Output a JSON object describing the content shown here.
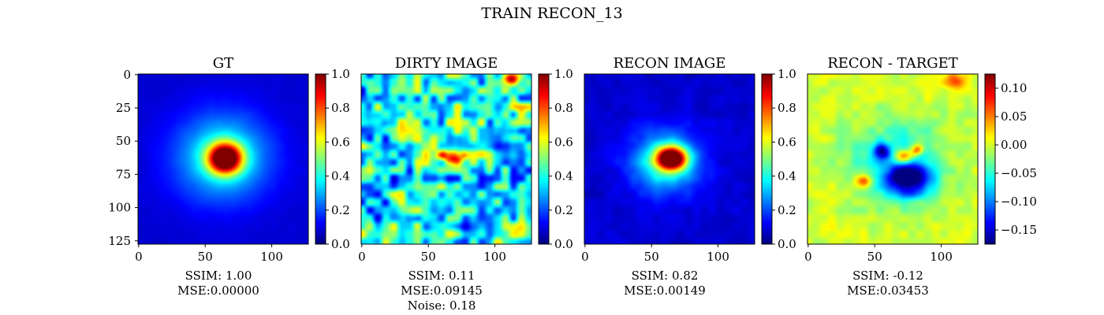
{
  "figure": {
    "suptitle": "TRAIN RECON_13"
  },
  "chart_data": [
    {
      "type": "heatmap",
      "title": "GT",
      "image_size": [
        128,
        128
      ],
      "colormap": "jet",
      "xticks": [
        0,
        50,
        100
      ],
      "yticks": [
        0,
        25,
        50,
        75,
        100,
        125
      ],
      "show_yticks": true,
      "colorbar": {
        "range": [
          0.0,
          1.0
        ],
        "ticks": [
          "0.0",
          "0.2",
          "0.4",
          "0.6",
          "0.8",
          "1.0"
        ]
      },
      "blobs": [
        {
          "cx": 65,
          "cy": 63,
          "sx": 9,
          "sy": 8,
          "amp": 0.95
        },
        {
          "cx": 63,
          "cy": 62,
          "sx": 25,
          "sy": 23,
          "amp": 0.32
        }
      ],
      "background": 0.08,
      "noise": 0.01,
      "metrics": [
        "SSIM: 1.00",
        "MSE:0.00000"
      ]
    },
    {
      "type": "heatmap",
      "title": "DIRTY IMAGE",
      "image_size": [
        128,
        128
      ],
      "colormap": "jet",
      "xticks": [
        0,
        50,
        100
      ],
      "yticks": [
        0,
        25,
        50,
        75,
        100,
        125
      ],
      "show_yticks": false,
      "colorbar": {
        "range": [
          0.0,
          1.0
        ],
        "ticks": [
          "0.0",
          "0.2",
          "0.4",
          "0.6",
          "0.8",
          "1.0"
        ]
      },
      "blobs": [
        {
          "cx": 68,
          "cy": 62,
          "sx": 7,
          "sy": 4,
          "amp": 0.55
        },
        {
          "cx": 112,
          "cy": 3,
          "sx": 4,
          "sy": 3,
          "amp": 0.45
        }
      ],
      "background": 0.38,
      "noise": 0.32,
      "metrics": [
        "SSIM: 0.11",
        "MSE:0.09145",
        "Noise: 0.18"
      ]
    },
    {
      "type": "heatmap",
      "title": "RECON IMAGE",
      "image_size": [
        128,
        128
      ],
      "colormap": "jet",
      "xticks": [
        0,
        50,
        100
      ],
      "yticks": [
        0,
        25,
        50,
        75,
        100,
        125
      ],
      "show_yticks": false,
      "colorbar": {
        "range": [
          0.0,
          1.0
        ],
        "ticks": [
          "0.0",
          "0.2",
          "0.4",
          "0.6",
          "0.8",
          "1.0"
        ]
      },
      "blobs": [
        {
          "cx": 65,
          "cy": 63,
          "sx": 8,
          "sy": 6,
          "amp": 0.95
        },
        {
          "cx": 60,
          "cy": 66,
          "sx": 18,
          "sy": 16,
          "amp": 0.35
        }
      ],
      "background": 0.08,
      "noise": 0.03,
      "metrics": [
        "SSIM: 0.82",
        "MSE:0.00149"
      ]
    },
    {
      "type": "heatmap",
      "title": "RECON - TARGET",
      "image_size": [
        128,
        128
      ],
      "colormap": "jet",
      "xticks": [
        0,
        50,
        100
      ],
      "yticks": [
        0,
        25,
        50,
        75,
        100,
        125
      ],
      "show_yticks": false,
      "colorbar": {
        "range": [
          -0.175,
          0.125
        ],
        "ticks": [
          "0.10",
          "0.05",
          "0.00",
          "−0.05",
          "−0.10",
          "−0.15"
        ],
        "tick_values": [
          0.1,
          0.05,
          0.0,
          -0.05,
          -0.1,
          -0.15
        ]
      },
      "blobs": [
        {
          "cx": 75,
          "cy": 78,
          "sx": 12,
          "sy": 9,
          "amp": -0.17
        },
        {
          "cx": 55,
          "cy": 58,
          "sx": 4,
          "sy": 4,
          "amp": -0.12
        },
        {
          "cx": 72,
          "cy": 62,
          "sx": 5,
          "sy": 4,
          "amp": 0.12
        },
        {
          "cx": 82,
          "cy": 57,
          "sx": 3,
          "sy": 3,
          "amp": 0.1
        },
        {
          "cx": 42,
          "cy": 80,
          "sx": 4,
          "sy": 3,
          "amp": 0.08
        },
        {
          "cx": 66,
          "cy": 65,
          "sx": 26,
          "sy": 22,
          "amp": -0.06
        },
        {
          "cx": 110,
          "cy": 5,
          "sx": 5,
          "sy": 4,
          "amp": 0.06
        }
      ],
      "background": 0.0,
      "noise": 0.02,
      "metrics": [
        "SSIM: -0.12",
        "MSE:0.03453"
      ]
    }
  ]
}
